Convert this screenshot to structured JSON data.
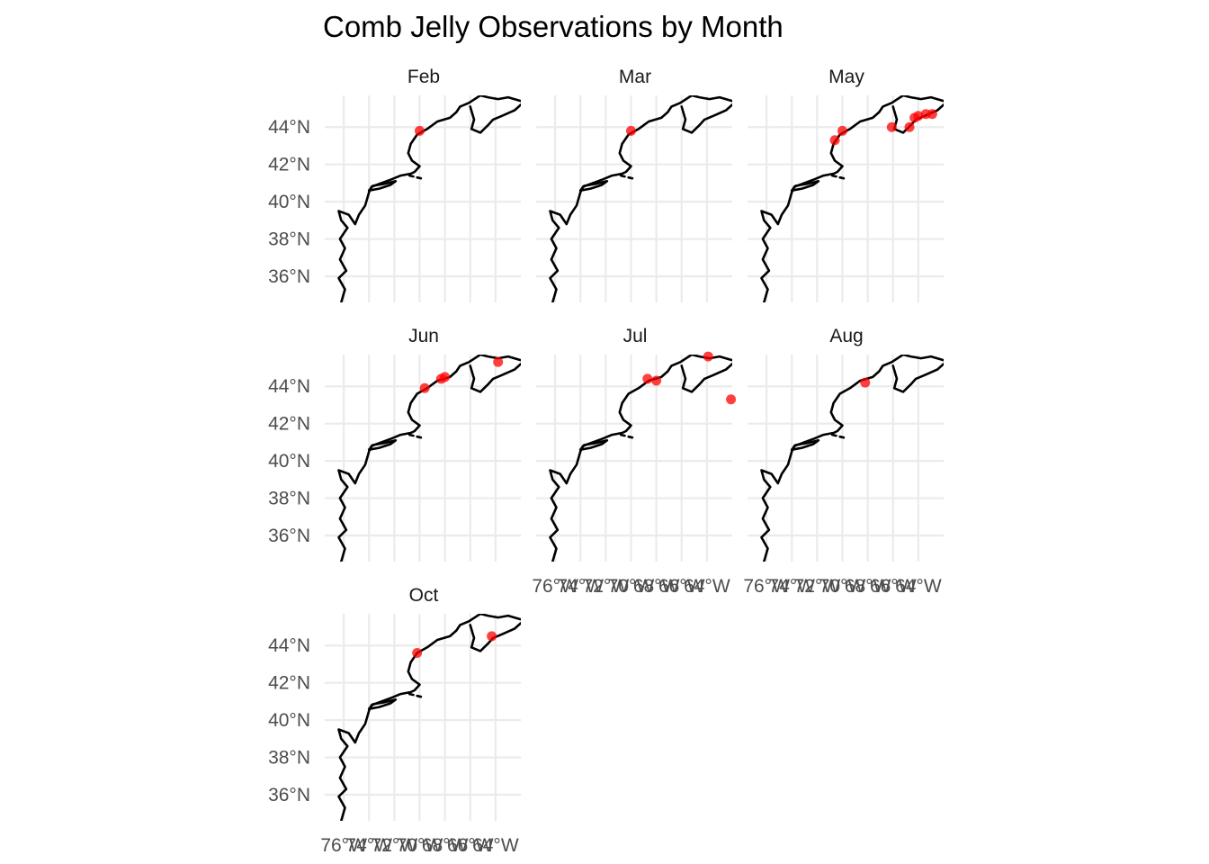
{
  "title": "Comb Jelly Observations by Month",
  "point_color": "#ff0000",
  "coast_color": "#000000",
  "y_axis_labels": [
    "44°N",
    "42°N",
    "40°N",
    "38°N",
    "36°N"
  ],
  "x_axis_labels": [
    "76°W",
    "74°W",
    "72°W",
    "70°W",
    "68°W",
    "66°W",
    "64°W"
  ],
  "map_extent": {
    "lon": [
      -77.5,
      -62.0
    ],
    "lat": [
      34.6,
      45.7
    ]
  },
  "panels": [
    {
      "month": "Feb",
      "observations": [
        {
          "lon": -70.0,
          "lat": 43.8
        }
      ]
    },
    {
      "month": "Mar",
      "observations": [
        {
          "lon": -70.0,
          "lat": 43.8
        }
      ]
    },
    {
      "month": "May",
      "observations": [
        {
          "lon": -70.6,
          "lat": 43.3
        },
        {
          "lon": -70.0,
          "lat": 43.8
        },
        {
          "lon": -66.1,
          "lat": 44.0
        },
        {
          "lon": -64.7,
          "lat": 44.0
        },
        {
          "lon": -64.3,
          "lat": 44.5
        },
        {
          "lon": -64.0,
          "lat": 44.6
        },
        {
          "lon": -63.4,
          "lat": 44.7
        },
        {
          "lon": -62.9,
          "lat": 44.7
        }
      ]
    },
    {
      "month": "Jun",
      "observations": [
        {
          "lon": -69.6,
          "lat": 43.9
        },
        {
          "lon": -68.3,
          "lat": 44.4
        },
        {
          "lon": -68.0,
          "lat": 44.5
        },
        {
          "lon": -63.8,
          "lat": 45.3
        }
      ]
    },
    {
      "month": "Jul",
      "observations": [
        {
          "lon": -68.7,
          "lat": 44.4
        },
        {
          "lon": -68.0,
          "lat": 44.3
        },
        {
          "lon": -63.9,
          "lat": 45.6
        },
        {
          "lon": -62.1,
          "lat": 43.3
        }
      ]
    },
    {
      "month": "Aug",
      "observations": [
        {
          "lon": -68.2,
          "lat": 44.2
        }
      ]
    },
    {
      "month": "Oct",
      "observations": [
        {
          "lon": -70.2,
          "lat": 43.6
        },
        {
          "lon": -64.3,
          "lat": 44.5
        }
      ]
    }
  ]
}
